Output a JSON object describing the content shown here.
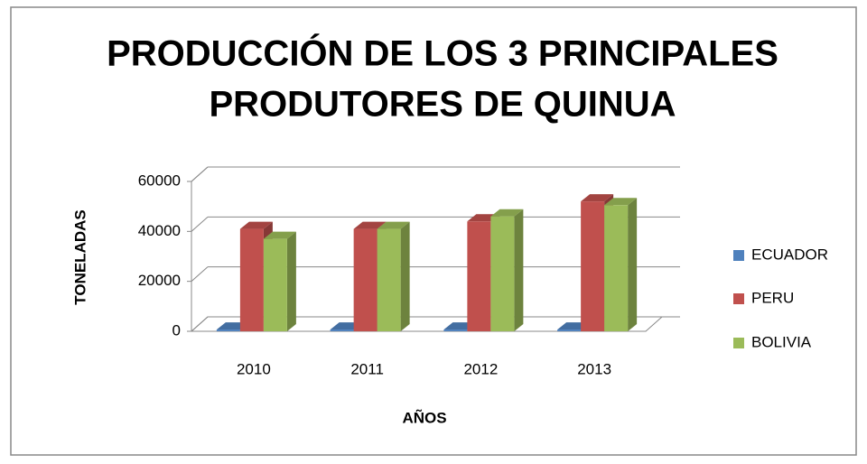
{
  "chart_data": {
    "type": "bar3d",
    "title": [
      "PRODUCCIÓN DE LOS 3 PRINCIPALES",
      "PRODUTORES DE QUINUA"
    ],
    "x_label": "AÑOS",
    "y_label": "TONELADAS",
    "categories": [
      "2010",
      "2011",
      "2012",
      "2013"
    ],
    "series": [
      {
        "name": "ECUADOR",
        "color": "#4f81bd",
        "values": [
          700,
          700,
          700,
          700
        ]
      },
      {
        "name": "PERU",
        "color": "#c0504d",
        "values": [
          41000,
          41000,
          44000,
          52000
        ]
      },
      {
        "name": "BOLIVIA",
        "color": "#9bbb59",
        "values": [
          37000,
          41000,
          46000,
          50500
        ]
      }
    ],
    "ylim": [
      0,
      60000
    ],
    "yticks": [
      0,
      20000,
      40000,
      60000
    ],
    "grid": true,
    "legend": "right"
  }
}
